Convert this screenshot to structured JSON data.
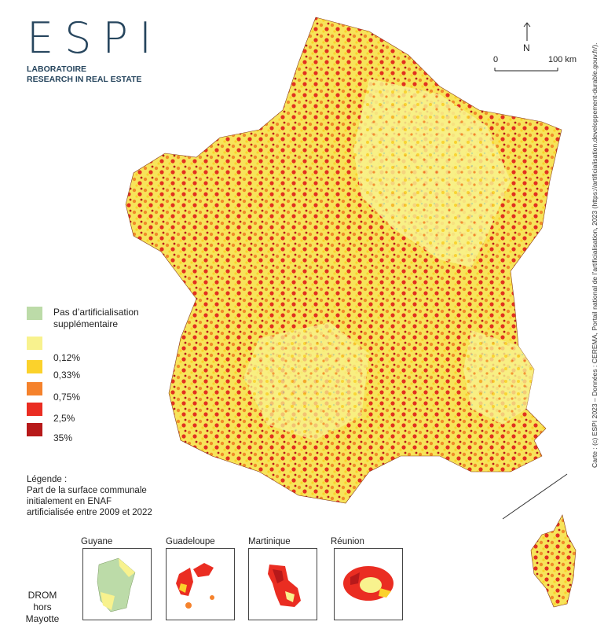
{
  "logo": {
    "word": "ESPI",
    "line1": "LABORATOIRE",
    "line2": "RESEARCH IN REAL ESTATE"
  },
  "scale": {
    "north": "N",
    "zero": "0",
    "max": "100 km"
  },
  "legend": {
    "items": [
      {
        "label": "Pas d’artificialisation\nsupplémentaire",
        "color": "#bcdba8"
      },
      {
        "label": "",
        "color": "#f8f28e"
      },
      {
        "label": "0,12%",
        "color": "#fbd22b"
      },
      {
        "label": "0,33%",
        "color": "#f5822c"
      },
      {
        "label": "0,75%",
        "color": "#ea2d22"
      },
      {
        "label": "2,5%",
        "color": "#b7191a"
      },
      {
        "label": "35%",
        "color": ""
      }
    ],
    "caption_line1": "Légende :",
    "caption_line2": "Part de la surface communale",
    "caption_line3": "initialement en ENAF",
    "caption_line4": "artificialisée entre 2009 et 2022"
  },
  "drom": {
    "label_line1": "DROM",
    "label_line2": "hors",
    "label_line3": "Mayotte",
    "territories": [
      "Guyane",
      "Guadeloupe",
      "Martinique",
      "Réunion"
    ]
  },
  "credit": "Carte : (c) ESPI 2023 – Données : CEREMA, Portail national de l’artificialisation, 2023 (https://artificialisation.developpement-durable.gouv.fr/)."
}
